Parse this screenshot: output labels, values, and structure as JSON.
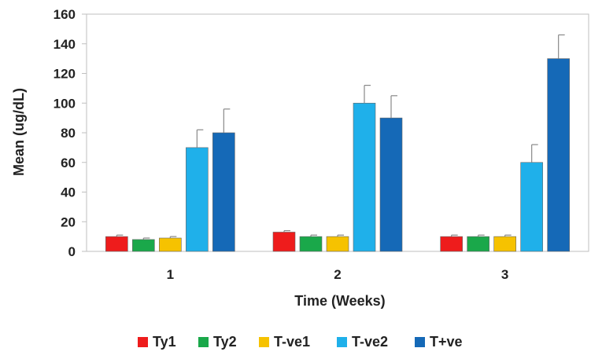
{
  "chart_data": {
    "type": "bar",
    "title": "",
    "xlabel": "Time (Weeks)",
    "ylabel": "Mean (ug/dL)",
    "categories": [
      "1",
      "2",
      "3"
    ],
    "ylim": [
      0,
      160
    ],
    "yticks": [
      "0",
      "20",
      "40",
      "60",
      "80",
      "100",
      "120",
      "140",
      "160"
    ],
    "grid": false,
    "legend": "bottom",
    "error_bars": true,
    "series": [
      {
        "name": "Ty1",
        "color": "#ee1c1c",
        "values": [
          10,
          13,
          10
        ],
        "errors": [
          1,
          1,
          1
        ]
      },
      {
        "name": "Ty2",
        "color": "#1aa84a",
        "values": [
          8,
          10,
          10
        ],
        "errors": [
          1,
          1,
          1
        ]
      },
      {
        "name": "T-ve1",
        "color": "#f6c200",
        "values": [
          9,
          10,
          10
        ],
        "errors": [
          1,
          1,
          1
        ]
      },
      {
        "name": "T-ve2",
        "color": "#1fb0ea",
        "values": [
          70,
          100,
          60
        ],
        "errors": [
          12,
          12,
          12
        ]
      },
      {
        "name": "T+ve",
        "color": "#1569b7",
        "values": [
          80,
          90,
          130
        ],
        "errors": [
          16,
          15,
          16
        ]
      }
    ]
  }
}
